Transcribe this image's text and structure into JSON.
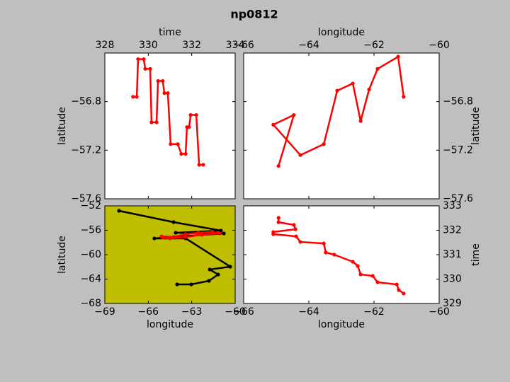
{
  "title": "np0812",
  "chart_data": [
    {
      "type": "line",
      "xlabel": "time",
      "ylabel": "latitude",
      "xaxis_position": "top",
      "yaxis_position": "left",
      "facecolor": "#ffffff",
      "xlim": [
        328,
        334
      ],
      "xticks": [
        328,
        330,
        332,
        334
      ],
      "ylim": [
        -57.6,
        -56.4
      ],
      "yticks": [
        {
          "value": -57.6,
          "label": "−57.6"
        },
        {
          "value": -57.2,
          "label": "−57.2"
        },
        {
          "value": -56.8,
          "label": "−56.8"
        }
      ],
      "series": [
        {
          "color": "#ff0000",
          "x": [
            329.3,
            329.47,
            329.53,
            329.79,
            329.86,
            330.09,
            330.15,
            330.38,
            330.45,
            330.67,
            330.74,
            330.9,
            331.03,
            331.36,
            331.52,
            331.72,
            331.78,
            331.88,
            331.95,
            332.21,
            332.34,
            332.53
          ],
          "values": [
            -56.76,
            -56.76,
            -56.45,
            -56.45,
            -56.53,
            -56.53,
            -56.97,
            -56.97,
            -56.63,
            -56.63,
            -56.73,
            -56.73,
            -57.15,
            -57.15,
            -57.23,
            -57.23,
            -57.01,
            -57.01,
            -56.91,
            -56.91,
            -57.32,
            -57.32
          ]
        }
      ]
    },
    {
      "type": "line",
      "xlabel": "longitude",
      "ylabel": "latitude",
      "xaxis_position": "top",
      "yaxis_position": "right",
      "facecolor": "#ffffff",
      "xlim": [
        -66,
        -60
      ],
      "xticks": [
        {
          "value": -66,
          "label": "−66"
        },
        {
          "value": -64,
          "label": "−64"
        },
        {
          "value": -62,
          "label": "−62"
        },
        {
          "value": -60,
          "label": "−60"
        }
      ],
      "ylim": [
        -57.6,
        -56.4
      ],
      "yticks": [
        {
          "value": -57.6,
          "label": "−57.6"
        },
        {
          "value": -57.2,
          "label": "−57.2"
        },
        {
          "value": -56.8,
          "label": "−56.8"
        }
      ],
      "series": [
        {
          "color": "#ff0000",
          "x": [
            -61.09,
            -61.26,
            -61.89,
            -62.15,
            -62.41,
            -62.65,
            -63.13,
            -63.54,
            -64.26,
            -65.09,
            -64.46,
            -64.93
          ],
          "values": [
            -56.76,
            -56.43,
            -56.53,
            -56.7,
            -56.96,
            -56.65,
            -56.71,
            -57.15,
            -57.24,
            -56.99,
            -56.91,
            -57.33
          ]
        }
      ]
    },
    {
      "type": "line",
      "xlabel": "longitude",
      "ylabel": "latitude",
      "xaxis_position": "bottom",
      "yaxis_position": "left",
      "facecolor": "#bfbf00",
      "xlim": [
        -69,
        -60
      ],
      "xticks": [
        {
          "value": -69,
          "label": "−69"
        },
        {
          "value": -66,
          "label": "−66"
        },
        {
          "value": -63,
          "label": "−63"
        },
        {
          "value": -60,
          "label": "−60"
        }
      ],
      "ylim": [
        -68,
        -52
      ],
      "yticks": [
        {
          "value": -68,
          "label": "−68"
        },
        {
          "value": -64,
          "label": "−64"
        },
        {
          "value": -60,
          "label": "−60"
        },
        {
          "value": -56,
          "label": "−56"
        },
        {
          "value": -52,
          "label": "−52"
        }
      ],
      "series": [
        {
          "color": "#000000",
          "x": [
            -68.02,
            -64.25,
            -60.98,
            -64.11,
            -60.78,
            -65.58,
            -63.42,
            -60.34,
            -61.76,
            -61.17,
            -61.81,
            -63.03,
            -64.01
          ],
          "values": [
            -52.81,
            -54.67,
            -56.06,
            -56.41,
            -56.52,
            -57.33,
            -57.33,
            -61.97,
            -62.43,
            -63.25,
            -64.29,
            -64.87,
            -64.87
          ]
        },
        {
          "color": "#ff0000",
          "x": [
            -65.09,
            -64.25,
            -63.42,
            -62.54,
            -61.56,
            -61.07,
            -62.3,
            -63.42,
            -64.5,
            -64.99
          ],
          "values": [
            -56.99,
            -57.1,
            -56.64,
            -56.41,
            -56.29,
            -56.52,
            -56.75,
            -57.1,
            -57.33,
            -57.22
          ]
        }
      ]
    },
    {
      "type": "line",
      "xlabel": "longitude",
      "ylabel": "time",
      "xaxis_position": "bottom",
      "yaxis_position": "right",
      "facecolor": "#ffffff",
      "xlim": [
        -66,
        -60
      ],
      "xticks": [
        {
          "value": -66,
          "label": "−66"
        },
        {
          "value": -64,
          "label": "−64"
        },
        {
          "value": -62,
          "label": "−62"
        },
        {
          "value": -60,
          "label": "−60"
        }
      ],
      "ylim": [
        329,
        333
      ],
      "yticks": [
        329,
        330,
        331,
        332,
        333
      ],
      "series": [
        {
          "color": "#ff0000",
          "x": [
            -64.93,
            -64.93,
            -64.46,
            -64.41,
            -65.09,
            -65.09,
            -64.39,
            -64.26,
            -63.54,
            -63.48,
            -63.22,
            -62.65,
            -62.5,
            -62.41,
            -62.04,
            -61.89,
            -61.3,
            -61.24,
            -61.09
          ],
          "values": [
            332.51,
            332.33,
            332.22,
            332.04,
            331.93,
            331.84,
            331.75,
            331.52,
            331.46,
            331.09,
            331.0,
            330.71,
            330.54,
            330.19,
            330.13,
            329.87,
            329.78,
            329.55,
            329.41
          ]
        }
      ]
    }
  ]
}
